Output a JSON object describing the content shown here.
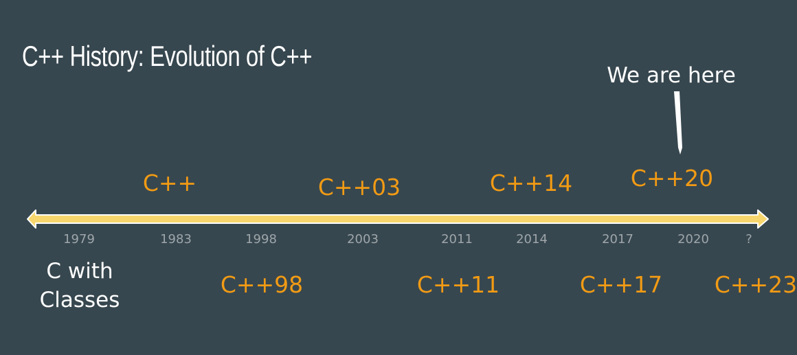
{
  "title": "C++ History: Evolution of C++",
  "colors": {
    "background": "#37474f",
    "timeline": "#f7d66d",
    "timeline_outline": "#ffffff",
    "version_text": "#f29b14",
    "year_text": "#9ea6aa",
    "white_text": "#ffffff"
  },
  "origin": {
    "line1": "C with",
    "line2": "Classes"
  },
  "marker": {
    "label": "We are here"
  },
  "years": [
    "1979",
    "1983",
    "1998",
    "2003",
    "2011",
    "2014",
    "2017",
    "2020",
    "?"
  ],
  "versions_above": [
    "C++",
    "C++03",
    "C++14",
    "C++20"
  ],
  "versions_below": [
    "C++98",
    "C++11",
    "C++17",
    "C++23"
  ]
}
